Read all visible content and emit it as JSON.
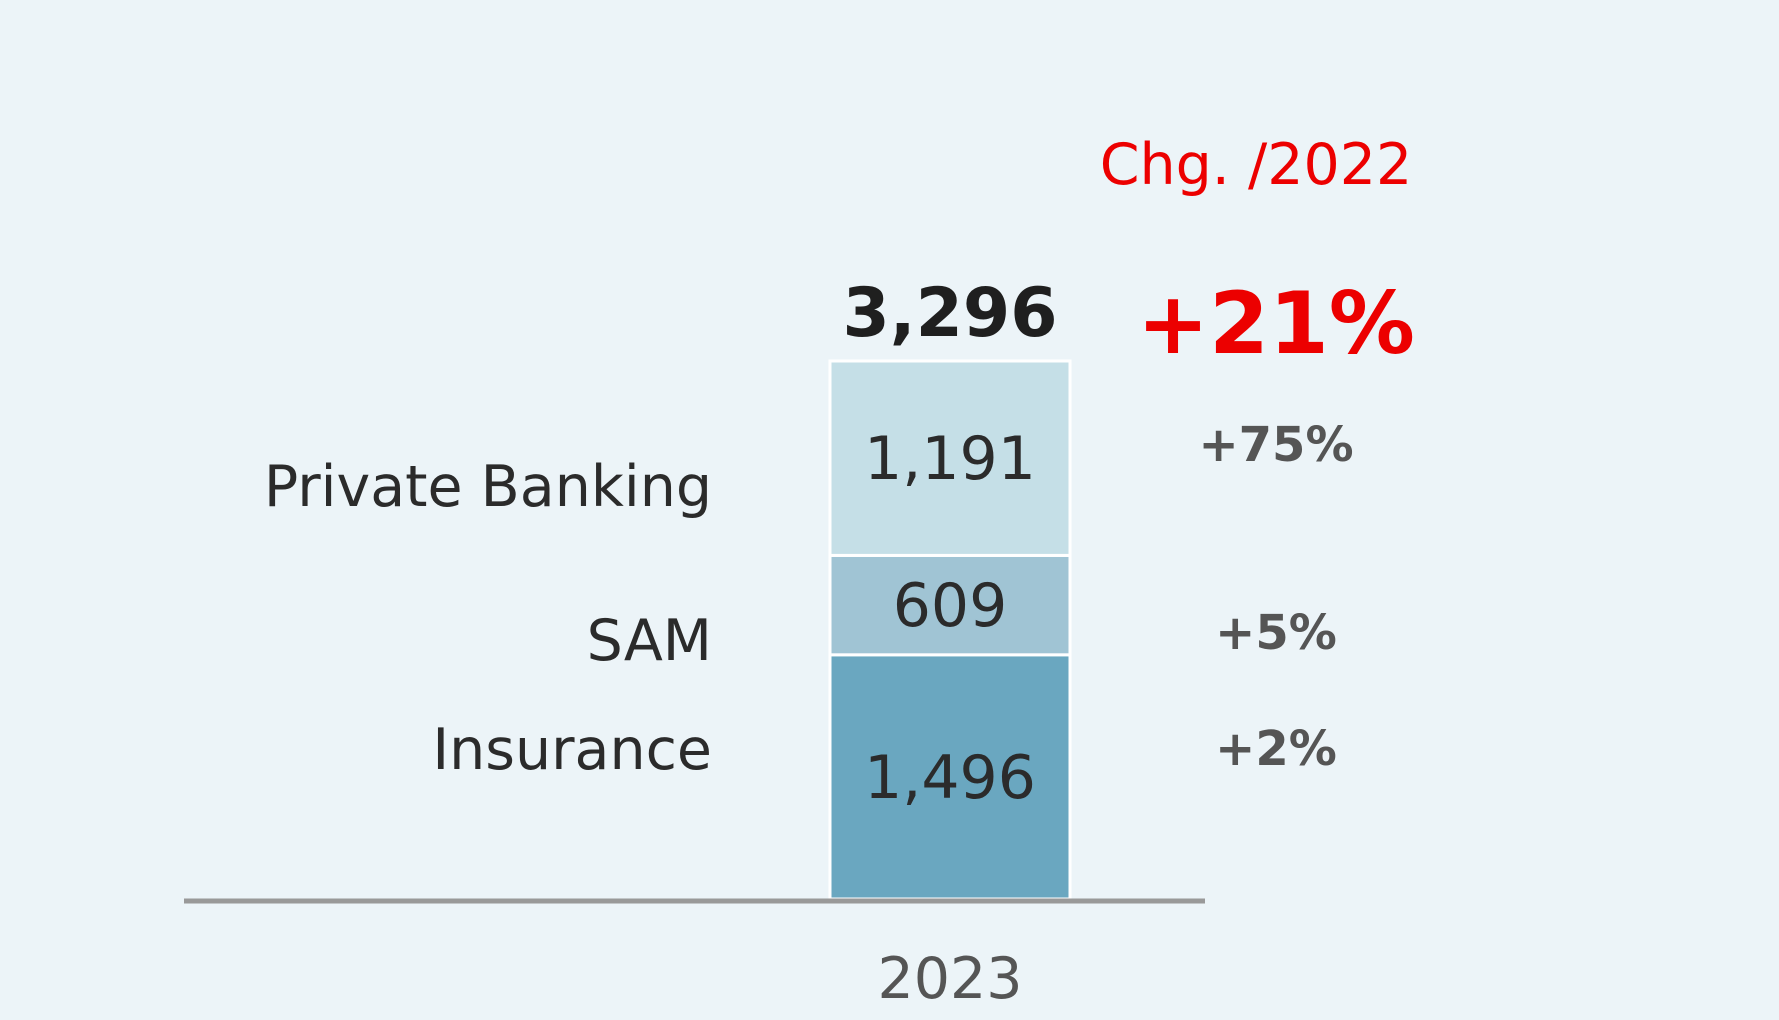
{
  "chart_data": {
    "type": "bar",
    "stacked": true,
    "categories": [
      "2023"
    ],
    "total": {
      "value": 3296,
      "label": "3,296"
    },
    "series": [
      {
        "name": "Insurance",
        "values": [
          1496
        ],
        "value_label": "1,496",
        "change": "+2%",
        "color": "#6aa7c0"
      },
      {
        "name": "SAM",
        "values": [
          609
        ],
        "value_label": "609",
        "change": "+5%",
        "color": "#a0c4d4"
      },
      {
        "name": "Private Banking",
        "values": [
          1191
        ],
        "value_label": "1,191",
        "change": "+75%",
        "color": "#c5dfe7"
      }
    ],
    "change_header": "Chg. /2022",
    "total_change": "+21%",
    "legend_placement": "left",
    "grid": false,
    "colors": {
      "background": "#ecf4f8",
      "accent": "#ec0000",
      "baseline": "#999999"
    }
  }
}
